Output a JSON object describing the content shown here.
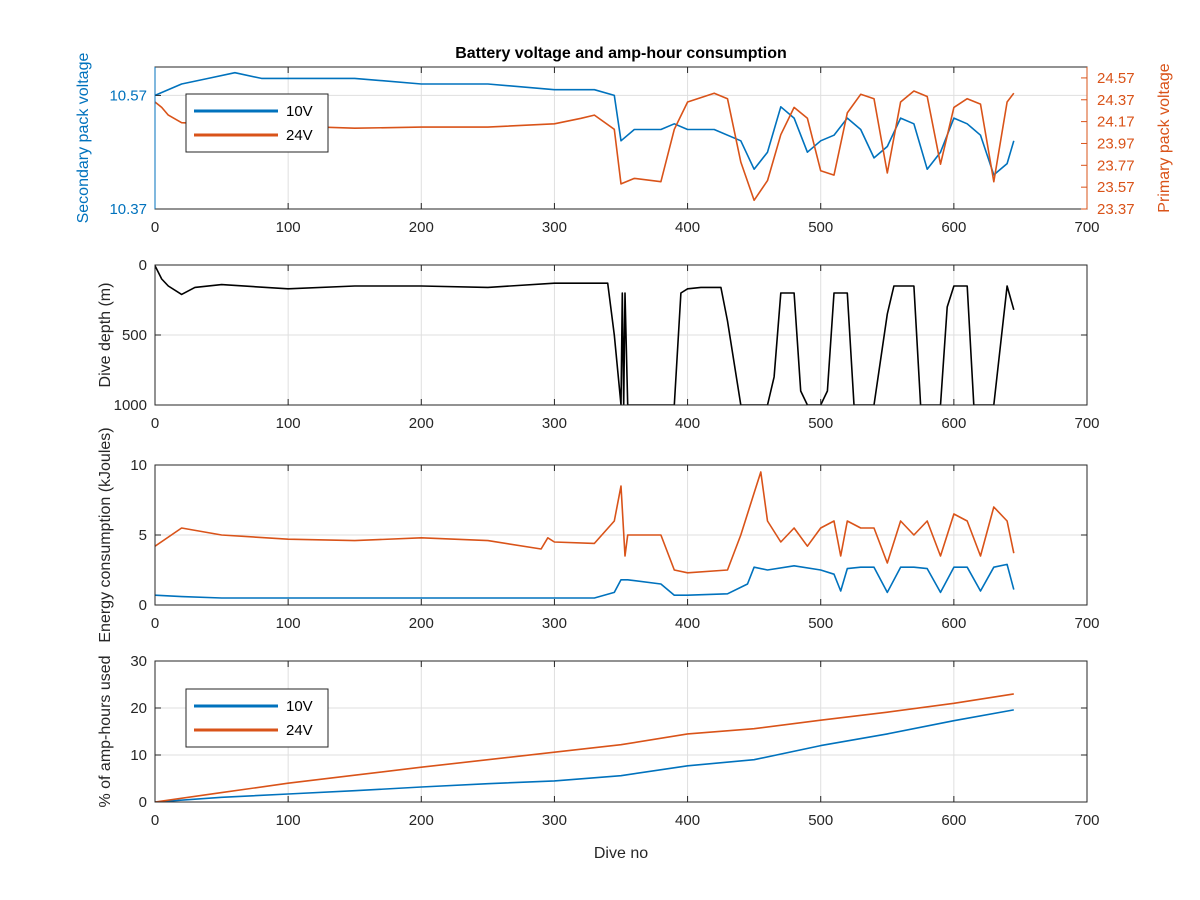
{
  "figure": {
    "title": "Battery voltage and amp-hour consumption",
    "x_label": "Dive no"
  },
  "colors": {
    "blue": "#0072bd",
    "orange": "#d95319",
    "black": "#000000",
    "grid": "#dfdfdf",
    "axis": "#262626"
  },
  "chart_data": [
    {
      "type": "line",
      "title": "Battery voltage and amp-hour consumption",
      "xlabel": "",
      "ylabel_left": "Secondary pack voltage",
      "ylabel_right": "Primary pack voltage",
      "xlim": [
        0,
        700
      ],
      "x_ticks": [
        0,
        100,
        200,
        300,
        400,
        500,
        600,
        700
      ],
      "ylim_left": [
        10.37,
        10.62
      ],
      "y_ticks_left": [
        10.37,
        10.57
      ],
      "ylim_right": [
        23.37,
        24.67
      ],
      "y_ticks_right": [
        23.37,
        23.57,
        23.77,
        23.97,
        24.17,
        24.37,
        24.57
      ],
      "grid": true,
      "legend": {
        "position": "top-left",
        "entries": [
          "10V",
          "24V"
        ]
      },
      "series": [
        {
          "name": "10V",
          "axis": "left",
          "x": [
            0,
            20,
            40,
            60,
            80,
            100,
            150,
            200,
            250,
            300,
            330,
            345,
            350,
            360,
            380,
            390,
            400,
            420,
            440,
            450,
            460,
            470,
            480,
            490,
            500,
            510,
            520,
            530,
            540,
            550,
            560,
            570,
            580,
            590,
            600,
            610,
            620,
            630,
            640,
            645
          ],
          "y": [
            10.57,
            10.59,
            10.6,
            10.61,
            10.6,
            10.6,
            10.6,
            10.59,
            10.59,
            10.58,
            10.58,
            10.57,
            10.49,
            10.51,
            10.51,
            10.52,
            10.51,
            10.51,
            10.49,
            10.44,
            10.47,
            10.55,
            10.53,
            10.47,
            10.49,
            10.5,
            10.53,
            10.51,
            10.46,
            10.48,
            10.53,
            10.52,
            10.44,
            10.47,
            10.53,
            10.52,
            10.5,
            10.43,
            10.45,
            10.49
          ]
        },
        {
          "name": "24V",
          "axis": "right",
          "x": [
            0,
            5,
            10,
            20,
            40,
            60,
            80,
            100,
            150,
            200,
            250,
            300,
            320,
            330,
            345,
            350,
            360,
            380,
            390,
            400,
            420,
            430,
            440,
            450,
            460,
            470,
            480,
            490,
            500,
            510,
            520,
            530,
            540,
            550,
            560,
            570,
            580,
            590,
            600,
            610,
            620,
            630,
            640,
            645
          ],
          "y": [
            24.35,
            24.3,
            24.23,
            24.16,
            24.15,
            24.13,
            24.14,
            24.13,
            24.11,
            24.12,
            24.12,
            24.15,
            24.2,
            24.23,
            24.1,
            23.6,
            23.65,
            23.62,
            24.1,
            24.35,
            24.43,
            24.38,
            23.8,
            23.45,
            23.63,
            24.05,
            24.3,
            24.2,
            23.72,
            23.68,
            24.25,
            24.42,
            24.38,
            23.7,
            24.35,
            24.45,
            24.4,
            23.78,
            24.3,
            24.38,
            24.33,
            23.62,
            24.35,
            24.43
          ]
        }
      ]
    },
    {
      "type": "line",
      "xlabel": "",
      "ylabel": "Dive depth (m)",
      "xlim": [
        0,
        700
      ],
      "x_ticks": [
        0,
        100,
        200,
        300,
        400,
        500,
        600,
        700
      ],
      "ylim": [
        0,
        1000
      ],
      "y_reversed": true,
      "y_ticks": [
        0,
        500,
        1000
      ],
      "grid": true,
      "series": [
        {
          "x": [
            0,
            5,
            10,
            20,
            30,
            50,
            100,
            150,
            200,
            250,
            300,
            340,
            345,
            350,
            351,
            352,
            353,
            355,
            380,
            390,
            395,
            400,
            410,
            425,
            430,
            440,
            450,
            460,
            465,
            470,
            480,
            485,
            490,
            500,
            505,
            510,
            520,
            525,
            530,
            540,
            550,
            555,
            560,
            570,
            575,
            580,
            590,
            595,
            600,
            610,
            615,
            620,
            630,
            640,
            645
          ],
          "y": [
            5,
            100,
            150,
            210,
            160,
            140,
            170,
            150,
            150,
            160,
            130,
            130,
            500,
            1000,
            200,
            1000,
            200,
            1000,
            1000,
            1000,
            200,
            170,
            160,
            160,
            400,
            1000,
            1000,
            1000,
            800,
            200,
            200,
            900,
            1000,
            1000,
            900,
            200,
            200,
            1000,
            1000,
            1000,
            350,
            150,
            150,
            150,
            1000,
            1000,
            1000,
            300,
            150,
            150,
            1000,
            1000,
            1000,
            150,
            320
          ]
        }
      ]
    },
    {
      "type": "line",
      "xlabel": "",
      "ylabel": "Energy consumption (kJoules)",
      "xlim": [
        0,
        700
      ],
      "x_ticks": [
        0,
        100,
        200,
        300,
        400,
        500,
        600,
        700
      ],
      "ylim": [
        0,
        10
      ],
      "y_ticks": [
        0,
        5,
        10
      ],
      "grid": true,
      "series": [
        {
          "name": "10V",
          "x": [
            0,
            20,
            50,
            100,
            150,
            200,
            250,
            300,
            330,
            345,
            350,
            355,
            380,
            390,
            400,
            430,
            445,
            450,
            460,
            480,
            500,
            510,
            515,
            520,
            530,
            540,
            550,
            560,
            570,
            580,
            590,
            600,
            610,
            620,
            630,
            640,
            645
          ],
          "y": [
            0.7,
            0.6,
            0.5,
            0.5,
            0.5,
            0.5,
            0.5,
            0.5,
            0.5,
            0.9,
            1.8,
            1.8,
            1.5,
            0.7,
            0.7,
            0.8,
            1.5,
            2.7,
            2.5,
            2.8,
            2.5,
            2.2,
            1.0,
            2.6,
            2.7,
            2.7,
            0.9,
            2.7,
            2.7,
            2.6,
            0.9,
            2.7,
            2.7,
            1.0,
            2.7,
            2.9,
            1.1
          ]
        },
        {
          "name": "24V",
          "x": [
            0,
            20,
            50,
            100,
            150,
            200,
            250,
            290,
            295,
            300,
            330,
            345,
            350,
            353,
            355,
            380,
            390,
            400,
            430,
            440,
            450,
            455,
            460,
            470,
            480,
            490,
            500,
            510,
            515,
            520,
            530,
            540,
            550,
            560,
            570,
            580,
            590,
            600,
            610,
            620,
            630,
            640,
            645
          ],
          "y": [
            4.2,
            5.5,
            5.0,
            4.7,
            4.6,
            4.8,
            4.6,
            4.0,
            4.8,
            4.5,
            4.4,
            6.0,
            8.5,
            3.5,
            5.0,
            5.0,
            2.5,
            2.3,
            2.5,
            5.0,
            8.0,
            9.5,
            6.0,
            4.5,
            5.5,
            4.2,
            5.5,
            6.0,
            3.5,
            6.0,
            5.5,
            5.5,
            3.0,
            6.0,
            5.0,
            6.0,
            3.5,
            6.5,
            6.0,
            3.5,
            7.0,
            6.0,
            3.7
          ]
        }
      ]
    },
    {
      "type": "line",
      "xlabel": "Dive no",
      "ylabel": "% of amp-hours used",
      "xlim": [
        0,
        700
      ],
      "x_ticks": [
        0,
        100,
        200,
        300,
        400,
        500,
        600,
        700
      ],
      "ylim": [
        0,
        30
      ],
      "y_ticks": [
        0,
        10,
        20,
        30
      ],
      "grid": true,
      "legend": {
        "position": "top-left",
        "entries": [
          "10V",
          "24V"
        ]
      },
      "series": [
        {
          "name": "10V",
          "x": [
            0,
            50,
            100,
            150,
            200,
            250,
            300,
            350,
            400,
            450,
            500,
            550,
            600,
            645
          ],
          "y": [
            0,
            1.0,
            1.7,
            2.4,
            3.2,
            3.9,
            4.5,
            5.6,
            7.7,
            9.0,
            12.0,
            14.5,
            17.3,
            19.6
          ]
        },
        {
          "name": "24V",
          "x": [
            0,
            50,
            100,
            150,
            200,
            250,
            300,
            350,
            400,
            450,
            500,
            550,
            600,
            645
          ],
          "y": [
            0,
            2.0,
            4.0,
            5.7,
            7.4,
            9.0,
            10.6,
            12.2,
            14.5,
            15.6,
            17.4,
            19.1,
            21.0,
            23.0
          ]
        }
      ]
    }
  ]
}
